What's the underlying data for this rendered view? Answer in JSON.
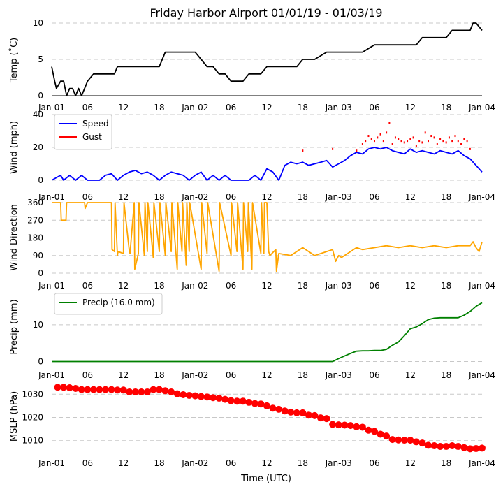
{
  "figure": {
    "title": "Friday Harbor Airport 01/01/19 - 01/03/19",
    "xlabel": "Time (UTC)"
  },
  "chart_data": [
    {
      "type": "line",
      "ylabel": "Temp (˚C)",
      "ylim": [
        0,
        10
      ],
      "yticks": [
        0,
        5,
        10
      ],
      "xlim": [
        0,
        72
      ],
      "xticks": [
        0,
        6,
        12,
        18,
        24,
        30,
        36,
        42,
        48,
        54,
        60,
        66,
        72
      ],
      "xticklabels": [
        "Jan-01",
        "06",
        "12",
        "18",
        "Jan-02",
        "06",
        "12",
        "18",
        "Jan-03",
        "06",
        "12",
        "18",
        "Jan-04"
      ],
      "grid": true,
      "bottom_spine": true,
      "series": [
        {
          "color": "#000000",
          "x": [
            0,
            0.5,
            0.8,
            1.5,
            2.0,
            2.5,
            3.0,
            3.5,
            4.0,
            4.5,
            5.0,
            5.5,
            6.0,
            7.0,
            8.0,
            9.0,
            10.0,
            10.5,
            11.0,
            12.0,
            14.0,
            16.0,
            18.0,
            18.5,
            19.0,
            20.0,
            22.0,
            24.0,
            25.0,
            26.0,
            27.0,
            28.0,
            29.0,
            30.0,
            31.0,
            32.0,
            33.0,
            35.0,
            36.0,
            38.0,
            40.0,
            41.0,
            42.0,
            44.0,
            46.0,
            47.0,
            48.0,
            49.0,
            50.0,
            52.0,
            54.0,
            55.0,
            56.0,
            58.0,
            60.0,
            61.0,
            62.0,
            64.0,
            65.0,
            66.0,
            67.0,
            68.0,
            69.0,
            70.0,
            70.5,
            71.0,
            72.0
          ],
          "y": [
            4,
            2,
            1,
            2,
            2,
            0,
            1,
            1,
            0,
            1,
            0,
            1,
            2,
            3,
            3,
            3,
            3,
            3,
            4,
            4,
            4,
            4,
            4,
            5,
            6,
            6,
            6,
            6,
            5,
            4,
            4,
            3,
            3,
            2,
            2,
            2,
            3,
            3,
            4,
            4,
            4,
            4,
            5,
            5,
            6,
            6,
            6,
            6,
            6,
            6,
            7,
            7,
            7,
            7,
            7,
            7,
            8,
            8,
            8,
            8,
            9,
            9,
            9,
            9,
            10,
            10,
            9
          ]
        }
      ]
    },
    {
      "type": "line",
      "ylabel": "Wind (mph)",
      "ylim": [
        0,
        40
      ],
      "yticks": [
        0,
        20,
        40
      ],
      "xlim": [
        0,
        72
      ],
      "xticks": [
        0,
        6,
        12,
        18,
        24,
        30,
        36,
        42,
        48,
        54,
        60,
        66,
        72
      ],
      "xticklabels": [
        "Jan-01",
        "06",
        "12",
        "18",
        "Jan-02",
        "06",
        "12",
        "18",
        "Jan-03",
        "06",
        "12",
        "18",
        "Jan-04"
      ],
      "grid": true,
      "legend": "top-left",
      "series": [
        {
          "name": "Speed",
          "color": "#0000ff",
          "x": [
            0,
            1.5,
            2,
            3,
            4,
            5,
            6,
            7,
            8,
            9,
            10,
            11,
            12,
            13,
            14,
            15,
            16,
            17,
            18,
            19,
            20,
            21,
            22,
            23,
            24,
            25,
            26,
            27,
            28,
            29,
            30,
            31,
            32,
            33,
            34,
            35,
            36,
            37,
            38,
            39,
            40,
            41,
            42,
            43,
            44,
            45,
            46,
            47,
            48,
            49,
            50,
            51,
            52,
            53,
            54,
            55,
            56,
            57,
            58,
            59,
            60,
            61,
            62,
            63,
            64,
            65,
            66,
            67,
            68,
            69,
            70,
            71,
            72
          ],
          "y": [
            0,
            3,
            0,
            3,
            0,
            3,
            0,
            0,
            0,
            3,
            4,
            0,
            3,
            5,
            6,
            4,
            5,
            3,
            0,
            3,
            5,
            4,
            3,
            0,
            3,
            5,
            0,
            3,
            0,
            3,
            0,
            0,
            0,
            0,
            3,
            0,
            7,
            5,
            0,
            9,
            11,
            10,
            11,
            9,
            10,
            11,
            12,
            8,
            10,
            12,
            15,
            17,
            16,
            19,
            20,
            19,
            20,
            18,
            17,
            16,
            19,
            17,
            18,
            17,
            16,
            18,
            17,
            16,
            18,
            15,
            13,
            9,
            5
          ]
        },
        {
          "name": "Gust",
          "color": "#ff0000",
          "x": [
            42,
            47,
            51,
            52,
            52.5,
            53,
            53.5,
            54,
            54.5,
            55,
            55.5,
            56,
            56.5,
            57,
            57.5,
            58,
            58.5,
            59,
            59.5,
            60,
            60.5,
            61,
            61.5,
            62,
            62.5,
            63,
            63.5,
            64,
            64.5,
            65,
            65.5,
            66,
            66.5,
            67,
            67.5,
            68,
            68.5,
            69,
            69.5,
            70
          ],
          "y": [
            18,
            19,
            18,
            22,
            24,
            27,
            25,
            24,
            26,
            28,
            24,
            29,
            35,
            22,
            26,
            25,
            24,
            23,
            24,
            25,
            26,
            21,
            24,
            23,
            29,
            24,
            27,
            26,
            22,
            25,
            24,
            23,
            26,
            24,
            27,
            24,
            22,
            25,
            24,
            19
          ]
        }
      ]
    },
    {
      "type": "line",
      "ylabel": "Wind Direction",
      "ylim": [
        0,
        360
      ],
      "yticks": [
        0,
        90,
        180,
        270,
        360
      ],
      "xlim": [
        0,
        72
      ],
      "xticks": [
        0,
        6,
        12,
        18,
        24,
        30,
        36,
        42,
        48,
        54,
        60,
        66,
        72
      ],
      "xticklabels": [
        "Jan-01",
        "06",
        "12",
        "18",
        "Jan-02",
        "06",
        "12",
        "18",
        "Jan-03",
        "06",
        "12",
        "18",
        "Jan-04"
      ],
      "grid": true,
      "series": [
        {
          "color": "#ffa500",
          "x": [
            0,
            1.5,
            1.6,
            2.4,
            2.5,
            5.5,
            5.6,
            6.0,
            10.0,
            10.1,
            10.5,
            10.6,
            11.0,
            11.1,
            12.0,
            12.1,
            13.0,
            13.1,
            13.8,
            13.9,
            14.5,
            14.6,
            15.5,
            15.6,
            16.0,
            16.1,
            17.0,
            17.1,
            18.0,
            18.1,
            19.0,
            19.1,
            20.0,
            20.1,
            21.0,
            21.1,
            21.8,
            21.9,
            22.5,
            22.6,
            23.0,
            23.1,
            25.0,
            25.1,
            26.0,
            26.1,
            28.0,
            28.1,
            30.0,
            30.1,
            31.0,
            31.1,
            32.0,
            32.1,
            32.8,
            32.9,
            33.5,
            33.6,
            35.0,
            35.1,
            35.5,
            35.6,
            36.0,
            36.3,
            36.5,
            37.5,
            37.6,
            38.0,
            40.0,
            42.0,
            44.0,
            46.0,
            47.0,
            47.5,
            48.0,
            48.5,
            49.0,
            50.0,
            51.0,
            52.0,
            54.0,
            56.0,
            58.0,
            60.0,
            62.0,
            64.0,
            66.0,
            68.0,
            70.0,
            70.5,
            71.0,
            71.5,
            72.0
          ],
          "y": [
            360,
            360,
            270,
            270,
            360,
            360,
            330,
            360,
            360,
            120,
            110,
            360,
            90,
            110,
            100,
            360,
            110,
            100,
            360,
            20,
            100,
            360,
            90,
            360,
            110,
            360,
            80,
            360,
            110,
            360,
            90,
            360,
            110,
            360,
            20,
            360,
            110,
            360,
            40,
            360,
            110,
            360,
            20,
            360,
            100,
            360,
            10,
            360,
            90,
            360,
            110,
            360,
            20,
            360,
            110,
            360,
            20,
            360,
            100,
            360,
            100,
            360,
            360,
            110,
            90,
            120,
            10,
            100,
            90,
            130,
            90,
            110,
            120,
            60,
            90,
            80,
            90,
            110,
            130,
            120,
            130,
            140,
            130,
            140,
            130,
            140,
            130,
            140,
            140,
            160,
            130,
            110,
            160
          ]
        }
      ]
    },
    {
      "type": "line",
      "ylabel": "Precip (mm)",
      "ylim": [
        -2,
        17
      ],
      "yticks": [
        0,
        10
      ],
      "xlim": [
        0,
        72
      ],
      "xticks": [
        0,
        6,
        12,
        18,
        24,
        30,
        36,
        42,
        48,
        54,
        60,
        66,
        72
      ],
      "xticklabels": [
        "Jan-01",
        "06",
        "12",
        "18",
        "Jan-02",
        "06",
        "12",
        "18",
        "Jan-03",
        "06",
        "12",
        "18",
        "Jan-04"
      ],
      "grid": true,
      "legend": "top-left",
      "series": [
        {
          "name": "Precip (16.0 mm)",
          "color": "#008000",
          "x": [
            0,
            47,
            48,
            49,
            50,
            51,
            52,
            53,
            54,
            55,
            56,
            57,
            58,
            59,
            60,
            61,
            62,
            63,
            64,
            65,
            66,
            67,
            68,
            69,
            70,
            71,
            72
          ],
          "y": [
            0,
            0,
            0.8,
            1.5,
            2.2,
            2.8,
            2.9,
            2.9,
            3.0,
            3.0,
            3.3,
            4.4,
            5.3,
            7.0,
            8.9,
            9.4,
            10.3,
            11.4,
            11.8,
            11.9,
            11.9,
            11.9,
            11.9,
            12.6,
            13.6,
            15.0,
            16.0
          ]
        }
      ]
    },
    {
      "type": "scatter",
      "ylabel": "MSLP (hPa)",
      "ylim": [
        1003,
        1034
      ],
      "yticks": [
        1010,
        1020,
        1030
      ],
      "xlim": [
        0,
        72
      ],
      "xticks": [
        0,
        6,
        12,
        18,
        24,
        30,
        36,
        42,
        48,
        54,
        60,
        66,
        72
      ],
      "xticklabels": [
        "Jan-01",
        "06",
        "12",
        "18",
        "Jan-02",
        "06",
        "12",
        "18",
        "Jan-03",
        "06",
        "12",
        "18",
        "Jan-04"
      ],
      "grid": true,
      "series": [
        {
          "color": "#ff0000",
          "x": [
            1,
            2,
            3,
            4,
            5,
            6,
            7,
            8,
            9,
            10,
            11,
            12,
            13,
            14,
            15,
            16,
            17,
            18,
            19,
            20,
            21,
            22,
            23,
            24,
            25,
            26,
            27,
            28,
            29,
            30,
            31,
            32,
            33,
            34,
            35,
            36,
            37,
            38,
            39,
            40,
            41,
            42,
            43,
            44,
            45,
            46,
            47,
            48,
            49,
            50,
            51,
            52,
            53,
            54,
            55,
            56,
            57,
            58,
            59,
            60,
            61,
            62,
            63,
            64,
            65,
            66,
            67,
            68,
            69,
            70,
            71,
            72
          ],
          "y": [
            1033,
            1033,
            1032.8,
            1032.5,
            1032,
            1032,
            1032,
            1032,
            1032,
            1032,
            1031.8,
            1031.8,
            1031,
            1031,
            1031,
            1031,
            1032,
            1032,
            1031.5,
            1031,
            1030.2,
            1029.8,
            1029.5,
            1029.3,
            1029,
            1028.8,
            1028.5,
            1028.3,
            1027.8,
            1027.2,
            1027,
            1027,
            1026.5,
            1026,
            1025.8,
            1025,
            1024,
            1023.5,
            1022.8,
            1022.3,
            1022,
            1022,
            1021,
            1020.8,
            1019.8,
            1019.5,
            1017,
            1016.8,
            1016.7,
            1016.5,
            1016,
            1015.8,
            1014.5,
            1014,
            1012.8,
            1012,
            1010.5,
            1010.3,
            1010.2,
            1010.2,
            1009.5,
            1009,
            1008,
            1007.8,
            1007.5,
            1007.5,
            1007.8,
            1007.5,
            1007,
            1006.5,
            1006.6,
            1006.8
          ]
        }
      ]
    }
  ]
}
